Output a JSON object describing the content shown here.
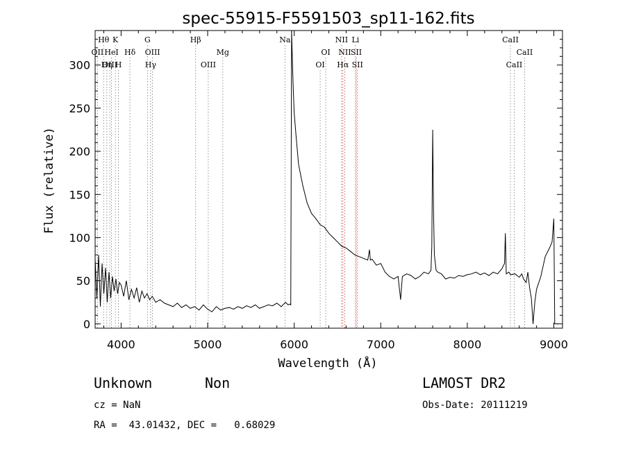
{
  "chart_data": {
    "type": "line",
    "title": "spec-55915-F5591503_sp11-162.fits",
    "xlabel": "Wavelength (Å)",
    "ylabel": "Flux (relative)",
    "xlim": [
      3700,
      9100
    ],
    "ylim": [
      -5,
      340
    ],
    "x_ticks": [
      4000,
      5000,
      6000,
      7000,
      8000,
      9000
    ],
    "y_ticks": [
      0,
      50,
      100,
      150,
      200,
      250,
      300
    ],
    "grid": false,
    "series": [
      {
        "x": [
          3700,
          3720,
          3740,
          3760,
          3780,
          3800,
          3820,
          3840,
          3860,
          3880,
          3900,
          3920,
          3940,
          3960,
          3980,
          4000,
          4030,
          4060,
          4090,
          4120,
          4150,
          4180,
          4210,
          4240,
          4270,
          4300,
          4330,
          4360,
          4400,
          4450,
          4500,
          4550,
          4600,
          4650,
          4700,
          4750,
          4800,
          4850,
          4900,
          4950,
          5000,
          5050,
          5100,
          5150,
          5200,
          5250,
          5300,
          5350,
          5400,
          5450,
          5500,
          5550,
          5600,
          5650,
          5700,
          5750,
          5800,
          5850,
          5900,
          5930,
          5950,
          5960,
          5970,
          5980,
          5990,
          6000,
          6020,
          6050,
          6080,
          6100,
          6150,
          6200,
          6250,
          6300,
          6350,
          6400,
          6450,
          6500,
          6550,
          6600,
          6650,
          6700,
          6750,
          6800,
          6850,
          6870,
          6880,
          6900,
          6950,
          7000,
          7050,
          7100,
          7150,
          7200,
          7230,
          7250,
          7300,
          7350,
          7400,
          7450,
          7500,
          7550,
          7580,
          7590,
          7600,
          7610,
          7620,
          7640,
          7660,
          7700,
          7750,
          7800,
          7850,
          7900,
          7950,
          8000,
          8050,
          8100,
          8150,
          8200,
          8250,
          8300,
          8350,
          8400,
          8430,
          8440,
          8450,
          8480,
          8500,
          8550,
          8600,
          8630,
          8650,
          8680,
          8700,
          8720,
          8740,
          8750,
          8760,
          8780,
          8800,
          8850,
          8900,
          8950,
          8980,
          9000,
          9010,
          9050
        ],
        "y": [
          75,
          30,
          80,
          20,
          70,
          35,
          65,
          25,
          60,
          30,
          55,
          38,
          52,
          35,
          48,
          45,
          32,
          50,
          28,
          40,
          30,
          42,
          25,
          38,
          30,
          35,
          28,
          32,
          25,
          28,
          24,
          22,
          20,
          24,
          19,
          22,
          18,
          20,
          16,
          22,
          17,
          14,
          20,
          16,
          18,
          19,
          17,
          20,
          18,
          21,
          19,
          22,
          18,
          20,
          22,
          21,
          24,
          20,
          25,
          22,
          23,
          22,
          340,
          300,
          270,
          245,
          220,
          185,
          170,
          160,
          140,
          128,
          122,
          115,
          112,
          105,
          100,
          95,
          90,
          88,
          84,
          80,
          78,
          76,
          74,
          86,
          74,
          75,
          68,
          70,
          60,
          55,
          52,
          55,
          28,
          55,
          58,
          56,
          52,
          55,
          60,
          58,
          62,
          90,
          225,
          130,
          80,
          62,
          60,
          58,
          52,
          54,
          53,
          56,
          55,
          57,
          58,
          60,
          57,
          59,
          56,
          60,
          58,
          64,
          70,
          105,
          58,
          60,
          57,
          58,
          54,
          58,
          52,
          48,
          60,
          42,
          30,
          15,
          0,
          25,
          40,
          55,
          78,
          88,
          95,
          122,
          0,
          0
        ]
      }
    ],
    "line_markers": [
      {
        "label": "Hθ",
        "x": 3798,
        "row": 1
      },
      {
        "label": "OII",
        "x": 3727,
        "row": 2
      },
      {
        "label": "OIII",
        "x": 3869,
        "row": 3
      },
      {
        "label": "K",
        "x": 3934,
        "row": 1
      },
      {
        "label": "HeI",
        "x": 3889,
        "row": 2
      },
      {
        "label": "Hη",
        "x": 3835,
        "row": 3
      },
      {
        "label": "H",
        "x": 3969,
        "row": 3
      },
      {
        "label": "Hδ",
        "x": 4102,
        "row": 2
      },
      {
        "label": "G",
        "x": 4305,
        "row": 1
      },
      {
        "label": "OIII",
        "x": 4363,
        "row": 2
      },
      {
        "label": "Hγ",
        "x": 4341,
        "row": 3
      },
      {
        "label": "Hβ",
        "x": 4861,
        "row": 1
      },
      {
        "label": "OIII",
        "x": 5007,
        "row": 3
      },
      {
        "label": "Mg",
        "x": 5175,
        "row": 2
      },
      {
        "label": "Na",
        "x": 5893,
        "row": 1
      },
      {
        "label": "OI",
        "x": 6364,
        "row": 2
      },
      {
        "label": "OI",
        "x": 6300,
        "row": 3
      },
      {
        "label": "NII",
        "x": 6548,
        "row": 1
      },
      {
        "label": "Li",
        "x": 6708,
        "row": 1
      },
      {
        "label": "NII",
        "x": 6584,
        "row": 2
      },
      {
        "label": "SII",
        "x": 6717,
        "row": 2
      },
      {
        "label": "Hα",
        "x": 6563,
        "row": 3
      },
      {
        "label": "SII",
        "x": 6731,
        "row": 3
      },
      {
        "label": "CaII",
        "x": 8498,
        "row": 1
      },
      {
        "label": "CaII",
        "x": 8662,
        "row": 2
      },
      {
        "label": "CaII",
        "x": 8542,
        "row": 3
      }
    ]
  },
  "info": {
    "class_text": "Unknown",
    "subclass_text": "Non",
    "survey_text": "LAMOST DR2",
    "cz_text": "cz = NaN",
    "obsdate_text": "Obs-Date: 20111219",
    "radec_text": "RA =  43.01432, DEC =   0.68029"
  }
}
